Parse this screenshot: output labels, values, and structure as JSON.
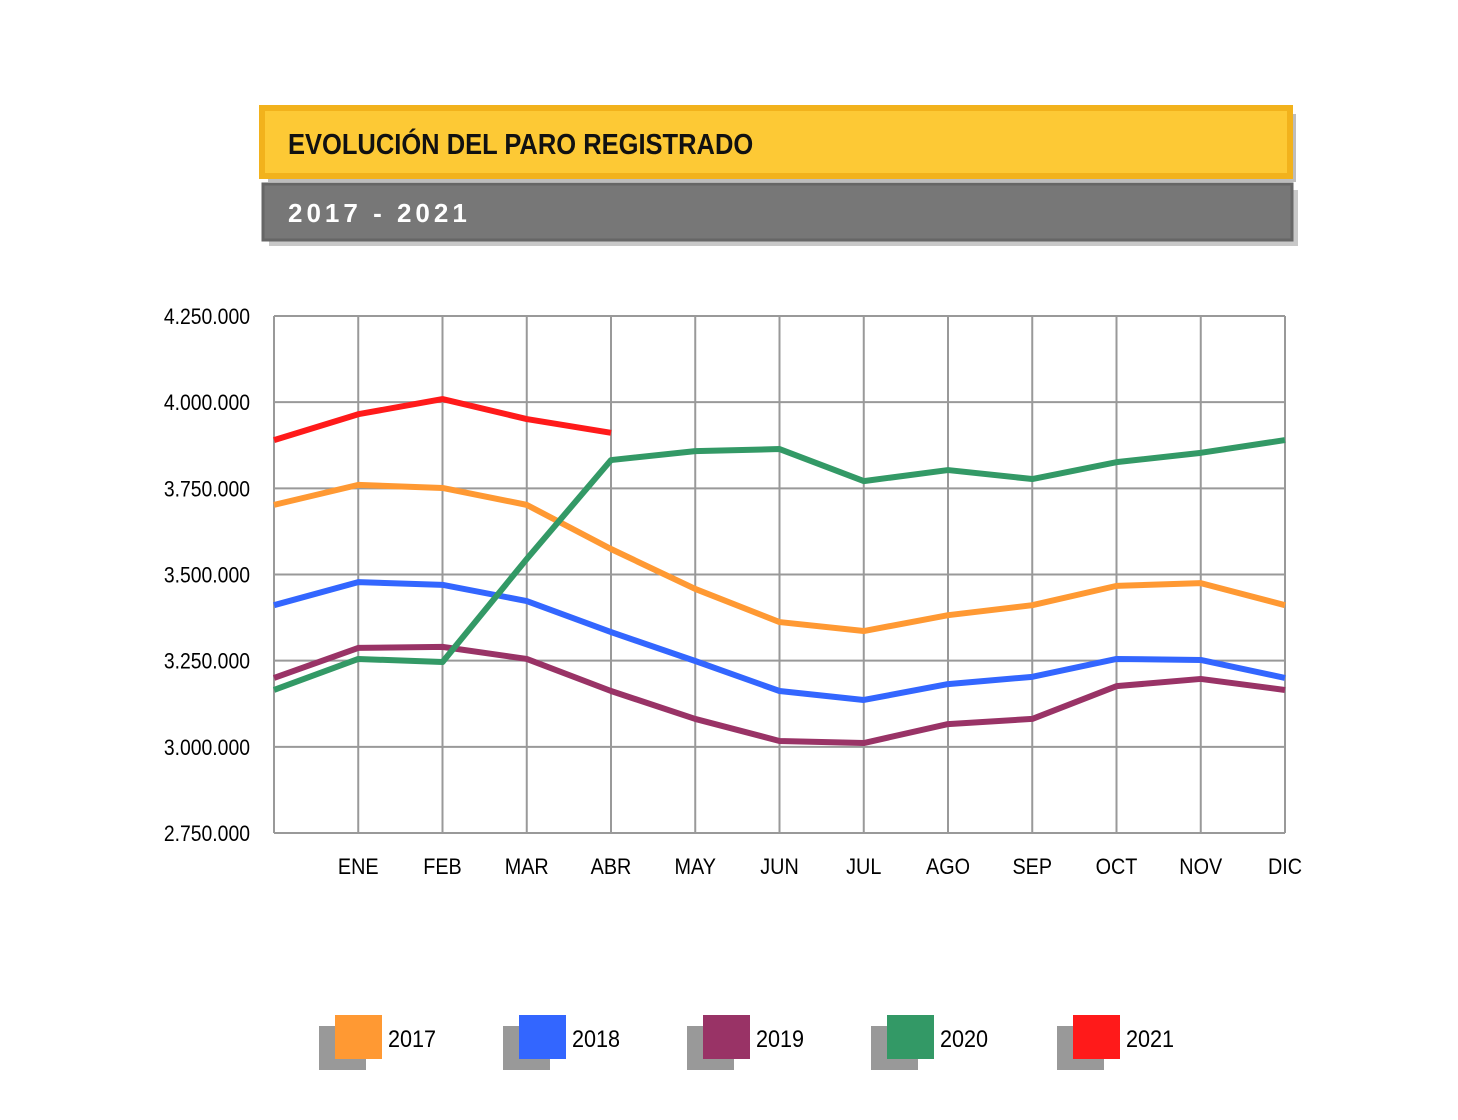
{
  "chart_data": {
    "type": "line",
    "title": "EVOLUCIÓN DEL PARO REGISTRADO",
    "subtitle": "2017 - 2021",
    "categories": [
      null,
      "ENE",
      "FEB",
      "MAR",
      "ABR",
      "MAY",
      "JUN",
      "JUL",
      "AGO",
      "SEP",
      "OCT",
      "NOV",
      "DIC"
    ],
    "ylim": [
      2750000,
      4250000
    ],
    "yticks": [
      {
        "value": 2750000,
        "label": "2.750.000"
      },
      {
        "value": 3000000,
        "label": "3.000.000"
      },
      {
        "value": 3250000,
        "label": "3.250.000"
      },
      {
        "value": 3500000,
        "label": "3.500.000"
      },
      {
        "value": 3750000,
        "label": "3.750.000"
      },
      {
        "value": 4000000,
        "label": "4.000.000"
      },
      {
        "value": 4250000,
        "label": "4.250.000"
      }
    ],
    "grid": true,
    "legend": "bottom",
    "series": [
      {
        "name": "2017",
        "color": "#ff9933",
        "values": [
          3702000,
          3760000,
          3751000,
          3702000,
          3574000,
          3458000,
          3362000,
          3336000,
          3382000,
          3411000,
          3467000,
          3475000,
          3411000
        ]
      },
      {
        "name": "2018",
        "color": "#3366ff",
        "values": [
          3411000,
          3478000,
          3470000,
          3423000,
          3333000,
          3249000,
          3162000,
          3136000,
          3182000,
          3203000,
          3255000,
          3252000,
          3200000
        ]
      },
      {
        "name": "2019",
        "color": "#993366",
        "values": [
          3200000,
          3287000,
          3290000,
          3255000,
          3162000,
          3081000,
          3017000,
          3011000,
          3066000,
          3081000,
          3176000,
          3197000,
          3165000
        ]
      },
      {
        "name": "2020",
        "color": "#339966",
        "values": [
          3165000,
          3255000,
          3246000,
          3545000,
          3832000,
          3858000,
          3864000,
          3771000,
          3803000,
          3777000,
          3826000,
          3853000,
          3890000
        ]
      },
      {
        "name": "2021",
        "color": "#ff1a1a",
        "values": [
          3890000,
          3965000,
          4009000,
          3951000,
          3911000,
          null,
          null,
          null,
          null,
          null,
          null,
          null,
          null
        ]
      }
    ]
  }
}
